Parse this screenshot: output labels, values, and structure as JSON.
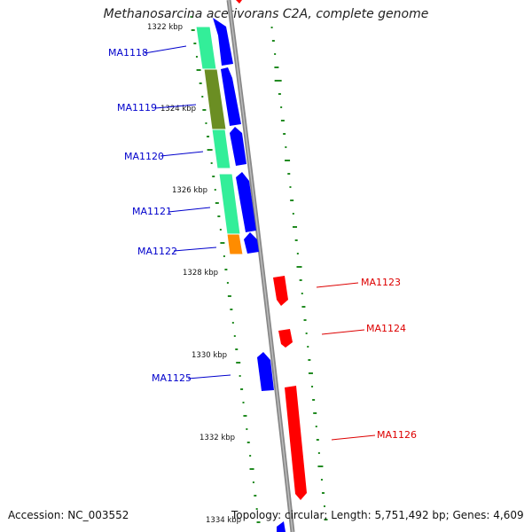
{
  "title": "Methanosarcina acetivorans C2A, complete genome",
  "accession": "Accession: NC_003552",
  "topology": "Topology: circular; Length: 5,751,492 bp; Genes: 4,609",
  "scale_labels": [
    "1322 kbp",
    "1324 kbp",
    "1326 kbp",
    "1328 kbp",
    "1330 kbp",
    "1332 kbp",
    "1334 kbp"
  ],
  "genes": [
    {
      "label": "MA1118",
      "strand": "forward"
    },
    {
      "label": "MA1119",
      "strand": "forward"
    },
    {
      "label": "MA1120",
      "strand": "forward"
    },
    {
      "label": "MA1121",
      "strand": "forward"
    },
    {
      "label": "MA1122",
      "strand": "forward"
    },
    {
      "label": "MA1123",
      "strand": "reverse"
    },
    {
      "label": "MA1124",
      "strand": "reverse"
    },
    {
      "label": "MA1125",
      "strand": "forward"
    },
    {
      "label": "MA1126",
      "strand": "reverse"
    }
  ],
  "colors": {
    "forward_gene": "#0000ff",
    "reverse_gene": "#ff0000",
    "forward_label": "#0000cc",
    "reverse_label": "#dd0000",
    "backbone": "#888888",
    "gc_ticks": "#228b22",
    "cog_cyan": "#33ee99",
    "cog_olive": "#6b8e23",
    "cog_orange": "#ff8c00"
  }
}
